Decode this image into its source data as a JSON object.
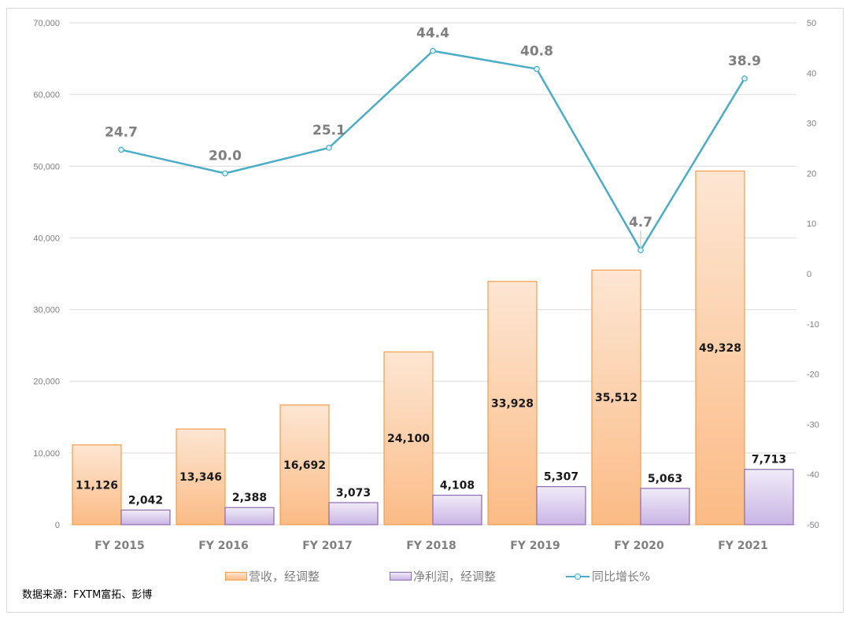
{
  "chart_data": {
    "type": "bar+line",
    "categories": [
      "FY 2015",
      "FY 2016",
      "FY 2017",
      "FY 2018",
      "FY 2019",
      "FY 2020",
      "FY 2021"
    ],
    "series": [
      {
        "name": "营收，经调整",
        "type": "bar",
        "axis": "left",
        "color": "#fbbd89",
        "border": "#f59d4b",
        "values": [
          11126,
          13346,
          16692,
          24100,
          33928,
          35512,
          49328
        ],
        "labels": [
          "11,126",
          "13,346",
          "16,692",
          "24,100",
          "33,928",
          "35,512",
          "49,328"
        ]
      },
      {
        "name": "净利润，经调整",
        "type": "bar",
        "axis": "left",
        "color": "#cbb8e6",
        "border": "#8c6bb1",
        "values": [
          2042,
          2388,
          3073,
          4108,
          5307,
          5063,
          7713
        ],
        "labels": [
          "2,042",
          "2,388",
          "3,073",
          "4,108",
          "5,307",
          "5,063",
          "7,713"
        ]
      },
      {
        "name": "同比增长%",
        "type": "line",
        "axis": "right",
        "color": "#4bacc6",
        "values": [
          24.7,
          20.0,
          25.1,
          44.4,
          40.8,
          4.7,
          38.9
        ],
        "labels": [
          "24.7",
          "20.0",
          "25.1",
          "44.4",
          "40.8",
          "4.7",
          "38.9"
        ]
      }
    ],
    "y_left": {
      "range": [
        0,
        70000
      ],
      "step": 10000,
      "tick_labels": [
        "0",
        "10,000",
        "20,000",
        "30,000",
        "40,000",
        "50,000",
        "60,000",
        "70,000"
      ]
    },
    "y_right": {
      "range": [
        -50,
        50
      ],
      "step": 10,
      "tick_labels": [
        "-50",
        "-40",
        "-30",
        "-20",
        "-10",
        "0",
        "10",
        "20",
        "30",
        "40",
        "50"
      ]
    },
    "grid": true,
    "legend_position": "bottom"
  },
  "legend": {
    "revenue": "营收，经调整",
    "profit": "净利润，经调整",
    "growth": "同比增长%"
  },
  "source": "数据来源：FXTM富拓、彭博"
}
